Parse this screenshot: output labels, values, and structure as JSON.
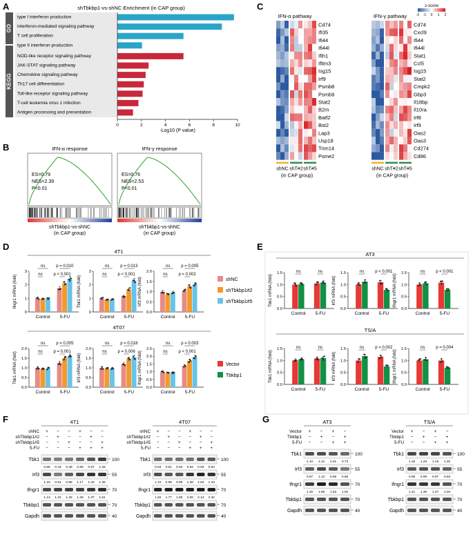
{
  "panel_letters": [
    "A",
    "B",
    "C",
    "D",
    "E",
    "F",
    "G"
  ],
  "colors": {
    "go_bar": "#2aa5c8",
    "kegg_bar": "#c8283a",
    "shNC": "#e88a86",
    "sh2": "#f39a2a",
    "sh5": "#66c3ea",
    "vector": "#e53935",
    "tbkbp1": "#119144",
    "gsea_line": "#2ca02c",
    "heat_high": "#d7191c",
    "heat_low": "#2c5aa0"
  },
  "panel_a": {
    "title": "shTbkbp1-vs-shNC Enrichment (in CAP group)",
    "go_label": "GO",
    "kegg_label": "KEGG",
    "xlabel": "-Log10 (P value)",
    "xlim": [
      0,
      10
    ],
    "xticks": [
      "0",
      "2",
      "4",
      "6",
      "8",
      "10"
    ]
  },
  "panel_b": {
    "plots": [
      {
        "title": "IFN-α response",
        "es": "ES=0.79",
        "nes": "NES=2.39",
        "p": "P<0.01",
        "xlabel1": "shTbkbp1-vs-shNC",
        "xlabel2": "(in CAP group)"
      },
      {
        "title": "IFN-γ response",
        "es": "ES=0.76",
        "nes": "NES=2.53",
        "p": "P<0.01",
        "xlabel1": "shTbkbp1-vs-shNC",
        "xlabel2": "(in CAP group)"
      }
    ]
  },
  "panel_c": {
    "legend_title": "z-score",
    "legend_ticks": [
      "-2",
      "-1",
      "0",
      "1",
      "2"
    ],
    "group_labels": [
      "shNC",
      "shT#2",
      "shT#5"
    ],
    "cap_group": "(in CAP group)",
    "heatmaps": [
      {
        "title": "IFN-α pathway",
        "genes": [
          "Cd74",
          "Ifi35",
          "Ifi44",
          "Ifi44l",
          "Ifih1",
          "Ifitm3",
          "Isg15",
          "Irf9",
          "Psmb8",
          "Psmb9",
          "Stat2",
          "B2m",
          "Batf2",
          "Bst2",
          "Lap3",
          "Usp18",
          "Trim14",
          "Psme2"
        ]
      },
      {
        "title": "IFN-γ pathway",
        "genes": [
          "Cd74",
          "Cxcl9",
          "Ifi44",
          "Ifi44l",
          "Stat1",
          "Ccl5",
          "Isg15",
          "Stat2",
          "Cmpk2",
          "Gbp3",
          "Il18bp",
          "Il10ra",
          "Irf8",
          "Irf9",
          "Oas2",
          "Oas3",
          "Cd274",
          "Cd86"
        ]
      }
    ]
  },
  "panel_d": {
    "legend": [
      "shNC",
      "shTbkbp1#2",
      "shTbkbp1#5"
    ],
    "groups": [
      "Control",
      "5-FU"
    ],
    "rows": [
      {
        "cell_line": "4T1",
        "plots": [
          {
            "ylabel": "Ifngr1 mRNA (fold)",
            "ylim": [
              0,
              3
            ],
            "yticks": [
              "0",
              "1",
              "2",
              "3"
            ],
            "ctrl": [
              1.0,
              0.95,
              0.98
            ],
            "fu": [
              1.75,
              2.1,
              2.45
            ],
            "ns_outer": "ns",
            "ns_inner": "ns",
            "p_outer": "p = 0.010",
            "p_inner": "p < 0.001"
          },
          {
            "ylabel": "Tbk1 mRNA (fold)",
            "ylim": [
              0,
              3
            ],
            "yticks": [
              "0",
              "1",
              "2",
              "3"
            ],
            "ctrl": [
              1.0,
              0.88,
              0.92
            ],
            "fu": [
              1.15,
              1.65,
              2.3
            ],
            "ns_outer": "ns",
            "ns_inner": "ns",
            "p_outer": "p = 0.013",
            "p_inner": "p < 0.001"
          },
          {
            "ylabel": "Irf3 mRNA (fold)",
            "ylim": [
              0,
              2.0
            ],
            "yticks": [
              "0.0",
              "0.5",
              "1.0",
              "1.5",
              "2.0"
            ],
            "ctrl": [
              1.0,
              0.85,
              0.95
            ],
            "fu": [
              1.05,
              1.25,
              1.35
            ],
            "ns_outer": "ns",
            "ns_inner": "ns",
            "p_outer": "p = 0.005",
            "p_inner": "p = 0.002"
          }
        ]
      },
      {
        "cell_line": "4T07",
        "plots": [
          {
            "ylabel": "Tbk1 mRNA (fold)",
            "ylim": [
              0,
              2.0
            ],
            "yticks": [
              "0.0",
              "0.5",
              "1.0",
              "1.5",
              "2.0"
            ],
            "ctrl": [
              1.0,
              0.93,
              0.97
            ],
            "fu": [
              1.25,
              1.5,
              1.6
            ],
            "ns_outer": "ns",
            "ns_inner": "ns",
            "p_outer": "p = 0.005",
            "p_inner": "p = 0.001"
          },
          {
            "ylabel": "Irf3 mRNA (fold)",
            "ylim": [
              0,
              2.0
            ],
            "yticks": [
              "0.0",
              "0.5",
              "1.0",
              "1.5",
              "2.0"
            ],
            "ctrl": [
              1.0,
              0.95,
              0.94
            ],
            "fu": [
              1.2,
              1.45,
              1.55
            ],
            "ns_outer": "ns",
            "ns_inner": "ns",
            "p_outer": "p = 0.018",
            "p_inner": "p = 0.006"
          },
          {
            "ylabel": "Ifngr1 mRNA (fold)",
            "ylim": [
              0,
              2.5
            ],
            "yticks": [
              "0.0",
              "0.5",
              "1.0",
              "1.5",
              "2.0",
              "2.5"
            ],
            "ctrl": [
              1.0,
              0.9,
              0.95
            ],
            "fu": [
              1.35,
              1.7,
              1.95
            ],
            "ns_outer": "ns",
            "ns_inner": "ns",
            "p_outer": "p = 0.003",
            "p_inner": "p < 0.001"
          }
        ]
      }
    ]
  },
  "panel_e": {
    "legend": [
      "Vector",
      "Tbkbp1"
    ],
    "groups": [
      "Control",
      "5-FU"
    ],
    "rows": [
      {
        "cell_line": "AT3",
        "plots": [
          {
            "ylabel": "Tbk1 mRNA (fold)",
            "ylim": [
              0,
              1.5
            ],
            "yticks": [
              "0.0",
              "0.5",
              "1.0",
              "1.5"
            ],
            "ctrl": [
              1.0,
              1.02
            ],
            "fu": [
              1.05,
              1.08
            ],
            "ns_ctrl": "ns",
            "ns_fu": "ns"
          },
          {
            "ylabel": "Irf3 mRNA (fold)",
            "ylim": [
              0,
              1.5
            ],
            "yticks": [
              "0.0",
              "0.5",
              "1.0",
              "1.5"
            ],
            "ctrl": [
              1.0,
              1.12
            ],
            "fu": [
              1.1,
              0.78
            ],
            "ns_ctrl": "ns",
            "ns_fu": "p < 0.001"
          },
          {
            "ylabel": "Ifngr1 mRNA (fold)",
            "ylim": [
              0,
              1.5
            ],
            "yticks": [
              "0.0",
              "0.5",
              "1.0",
              "1.5"
            ],
            "ctrl": [
              1.0,
              1.05
            ],
            "fu": [
              1.08,
              0.78
            ],
            "ns_ctrl": "ns",
            "ns_fu": "p < 0.001"
          }
        ]
      },
      {
        "cell_line": "TS/A",
        "plots": [
          {
            "ylabel": "Tbk1 mRNA (fold)",
            "ylim": [
              0,
              1.5
            ],
            "yticks": [
              "0.0",
              "0.5",
              "1.0",
              "1.5"
            ],
            "ctrl": [
              1.0,
              1.05
            ],
            "fu": [
              1.08,
              1.1
            ],
            "ns_ctrl": "ns",
            "ns_fu": "ns"
          },
          {
            "ylabel": "Irf3 mRNA (fold)",
            "ylim": [
              0,
              1.5
            ],
            "yticks": [
              "0.0",
              "0.5",
              "1.0",
              "1.5"
            ],
            "ctrl": [
              1.0,
              1.18
            ],
            "fu": [
              1.15,
              0.75
            ],
            "ns_ctrl": "ns",
            "ns_fu": "p = 0.002"
          },
          {
            "ylabel": "Ifngr1 mRNA (fold)",
            "ylim": [
              0,
              1.5
            ],
            "yticks": [
              "0.0",
              "0.5",
              "1.0",
              "1.5"
            ],
            "ctrl": [
              1.0,
              1.05
            ],
            "fu": [
              1.0,
              0.7
            ],
            "ns_ctrl": "ns",
            "ns_fu": "p = 0.004"
          }
        ]
      }
    ]
  },
  "panel_f": {
    "blots": [
      {
        "cell_line": "4T1",
        "conditions": [
          "shNC",
          "shTbkbp1#2",
          "shTbkbp1#5",
          "5-FU"
        ],
        "signs": [
          [
            "+",
            "−",
            "−",
            "+",
            "−",
            "−"
          ],
          [
            "−",
            "+",
            "−",
            "−",
            "+",
            "−"
          ],
          [
            "−",
            "−",
            "+",
            "−",
            "−",
            "+"
          ],
          [
            "−",
            "−",
            "−",
            "+",
            "+",
            "+"
          ]
        ],
        "proteins": [
          {
            "name": "Tbk1",
            "mw": "100",
            "quant": [
              "0.55",
              "0.43",
              "0.48",
              "0.69",
              "0.97",
              "1.29"
            ]
          },
          {
            "name": "Irf3",
            "mw": "55",
            "quant": [
              "1.16",
              "0.51",
              "0.86",
              "1.17",
              "1.42",
              "1.36"
            ]
          },
          {
            "name": "Ifngr1",
            "mw": "70",
            "quant": [
              "1.13",
              "1.22",
              "1.26",
              "1.29",
              "1.37",
              "1.51"
            ]
          },
          {
            "name": "Tbkbp1",
            "mw": "70",
            "quant": []
          },
          {
            "name": "Gapdh",
            "mw": "40",
            "quant": []
          }
        ]
      },
      {
        "cell_line": "4T07",
        "conditions": [
          "shNC",
          "shTbkbp1#2",
          "shTbkbp1#5",
          "5-FU"
        ],
        "signs": [
          [
            "+",
            "−",
            "−",
            "+",
            "−",
            "−"
          ],
          [
            "−",
            "+",
            "−",
            "−",
            "+",
            "−"
          ],
          [
            "−",
            "−",
            "+",
            "−",
            "−",
            "+"
          ],
          [
            "−",
            "−",
            "−",
            "+",
            "+",
            "+"
          ]
        ],
        "proteins": [
          {
            "name": "Tbk1",
            "mw": "100",
            "quant": [
              "0.63",
              "0.61",
              "0.63",
              "0.62",
              "0.93",
              "0.94"
            ]
          },
          {
            "name": "Irf3",
            "mw": "55",
            "quant": [
              "1.10",
              "0.96",
              "0.96",
              "1.36",
              "1.63",
              "1.43"
            ]
          },
          {
            "name": "Ifngr1",
            "mw": "70",
            "quant": [
              "1.62",
              "1.77",
              "1.80",
              "2.00",
              "2.13",
              "2.32"
            ]
          },
          {
            "name": "Tbkbp1",
            "mw": "70",
            "quant": []
          },
          {
            "name": "Gapdh",
            "mw": "40",
            "quant": []
          }
        ]
      }
    ]
  },
  "panel_g": {
    "blots": [
      {
        "cell_line": "AT3",
        "conditions": [
          "Vector",
          "Tbkbp1",
          "5-FU"
        ],
        "signs": [
          [
            "+",
            "−",
            "+",
            "−"
          ],
          [
            "−",
            "+",
            "−",
            "+"
          ],
          [
            "−",
            "−",
            "+",
            "+"
          ]
        ],
        "proteins": [
          {
            "name": "Tbk1",
            "mw": "100",
            "quant": [
              "1.10",
              "1.12",
              "1.01",
              "0.73"
            ]
          },
          {
            "name": "Irf3",
            "mw": "55",
            "quant": [
              "0.87",
              "1.13",
              "0.95",
              "0.55"
            ]
          },
          {
            "name": "Ifngr1",
            "mw": "70",
            "quant": [
              "1.30",
              "1.85",
              "1.53",
              "1.02"
            ]
          },
          {
            "name": "Tbkbp1",
            "mw": "70",
            "quant": []
          },
          {
            "name": "Gapdh",
            "mw": "40",
            "quant": []
          }
        ]
      },
      {
        "cell_line": "TS/A",
        "conditions": [
          "Vector",
          "Tbkbp1",
          "5-FU"
        ],
        "signs": [
          [
            "+",
            "−",
            "+",
            "−"
          ],
          [
            "−",
            "+",
            "−",
            "+"
          ],
          [
            "−",
            "−",
            "+",
            "+"
          ]
        ],
        "proteins": [
          {
            "name": "Tbk1",
            "mw": "100",
            "quant": [
              "1.16",
              "1.23",
              "1.19",
              "1.02"
            ]
          },
          {
            "name": "Irf3",
            "mw": "55",
            "quant": [
              "0.95",
              "0.99",
              "0.97",
              "0.83"
            ]
          },
          {
            "name": "Ifngr1",
            "mw": "70",
            "quant": [
              "1.41",
              "1.36",
              "1.37",
              "1.04"
            ]
          },
          {
            "name": "Tbkbp1",
            "mw": "70",
            "quant": []
          },
          {
            "name": "Gapdh",
            "mw": "40",
            "quant": []
          }
        ]
      }
    ]
  },
  "chart_data": [
    {
      "type": "bar",
      "orientation": "horizontal",
      "title": "shTbkbp1-vs-shNC Enrichment (in CAP group)",
      "xlabel": "-Log10 (P value)",
      "xlim": [
        0,
        10
      ],
      "categories": [
        "type I interferon production",
        "interferon-mediated signaling pathway",
        "T cell proliferation",
        "type II interferon production",
        "NOD-like receptor signaling pathway",
        "JAK-STAT signaling pathway",
        "Chemokine signaling pathway",
        "Th17 cell differentiation",
        "Toll-like receptor signaling pathway",
        "T-cell leukemia virus 1 infection",
        "Antigen processing and presentation"
      ],
      "values": [
        9.7,
        8.7,
        5.5,
        2.05,
        5.5,
        2.6,
        2.35,
        2.2,
        2.1,
        1.75,
        1.3
      ],
      "groups": [
        "GO",
        "GO",
        "GO",
        "GO",
        "KEGG",
        "KEGG",
        "KEGG",
        "KEGG",
        "KEGG",
        "KEGG",
        "KEGG"
      ]
    }
  ]
}
